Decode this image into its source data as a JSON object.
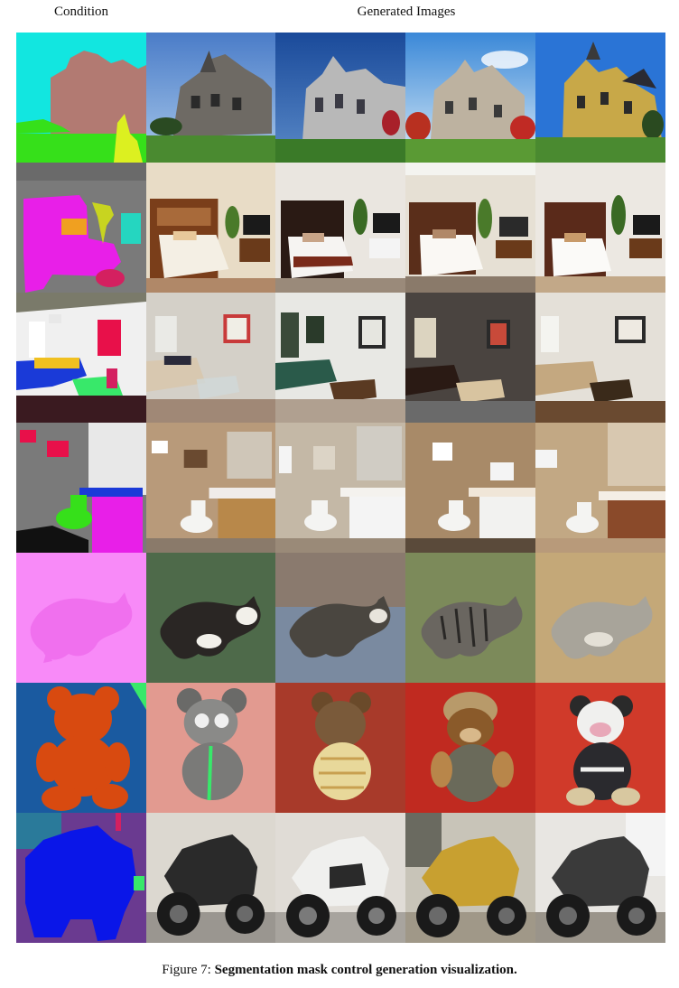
{
  "headers": {
    "condition": "Condition",
    "generated": "Generated Images"
  },
  "caption": {
    "label": "Figure 7: ",
    "text": "Segmentation mask control generation visualization."
  },
  "rows": [
    {
      "subject": "house",
      "condition_icon": "segmentation-mask-house",
      "generated": [
        "generated-house-1",
        "generated-house-2",
        "generated-house-3",
        "generated-house-4"
      ]
    },
    {
      "subject": "bedroom",
      "condition_icon": "segmentation-mask-bedroom",
      "generated": [
        "generated-bedroom-1",
        "generated-bedroom-2",
        "generated-bedroom-3",
        "generated-bedroom-4"
      ]
    },
    {
      "subject": "living-room",
      "condition_icon": "segmentation-mask-living-room",
      "generated": [
        "generated-living-room-1",
        "generated-living-room-2",
        "generated-living-room-3",
        "generated-living-room-4"
      ]
    },
    {
      "subject": "bathroom",
      "condition_icon": "segmentation-mask-bathroom",
      "generated": [
        "generated-bathroom-1",
        "generated-bathroom-2",
        "generated-bathroom-3",
        "generated-bathroom-4"
      ]
    },
    {
      "subject": "cat",
      "condition_icon": "segmentation-mask-cat",
      "generated": [
        "generated-cat-1",
        "generated-cat-2",
        "generated-cat-3",
        "generated-cat-4"
      ]
    },
    {
      "subject": "teddy-bear",
      "condition_icon": "segmentation-mask-teddy-bear",
      "generated": [
        "generated-teddy-bear-1",
        "generated-teddy-bear-2",
        "generated-teddy-bear-3",
        "generated-teddy-bear-4"
      ]
    },
    {
      "subject": "motorcycle",
      "condition_icon": "segmentation-mask-motorcycle",
      "generated": [
        "generated-motorcycle-1",
        "generated-motorcycle-2",
        "generated-motorcycle-3",
        "generated-motorcycle-4"
      ]
    }
  ],
  "mask_colors": {
    "house": {
      "sky": "#12e6e0",
      "building": "#b27a72",
      "grass": "#36e01a",
      "tree": "#dcf020"
    },
    "bedroom": {
      "wall": "#7a7a7a",
      "bed": "#e81fe8",
      "pillow": "#f0a020",
      "plant": "#c8d420",
      "tv": "#25d6c0",
      "table": "#d42060"
    },
    "living-room": {
      "wall": "#f0f0f0",
      "ceiling": "#7a7a6a",
      "sofa": "#1a3ad8",
      "cushion": "#f0c020",
      "table": "#38e86a",
      "art": "#e8104a",
      "floor": "#3a1a20"
    },
    "bathroom": {
      "wall": "#7a7a7a",
      "mirror": "#e8e8e8",
      "cabinet": "#e81fe8",
      "toilet": "#36e01a",
      "art": "#e8104a",
      "floor": "#111111"
    },
    "cat": {
      "background": "#f88af8",
      "cat": "#f070ee"
    },
    "teddy-bear": {
      "background": "#1a5aa0",
      "bear": "#d84a10"
    },
    "motorcycle": {
      "background": "#6a3a90",
      "bike": "#0a16e8",
      "wall": "#2a7a9a"
    }
  }
}
